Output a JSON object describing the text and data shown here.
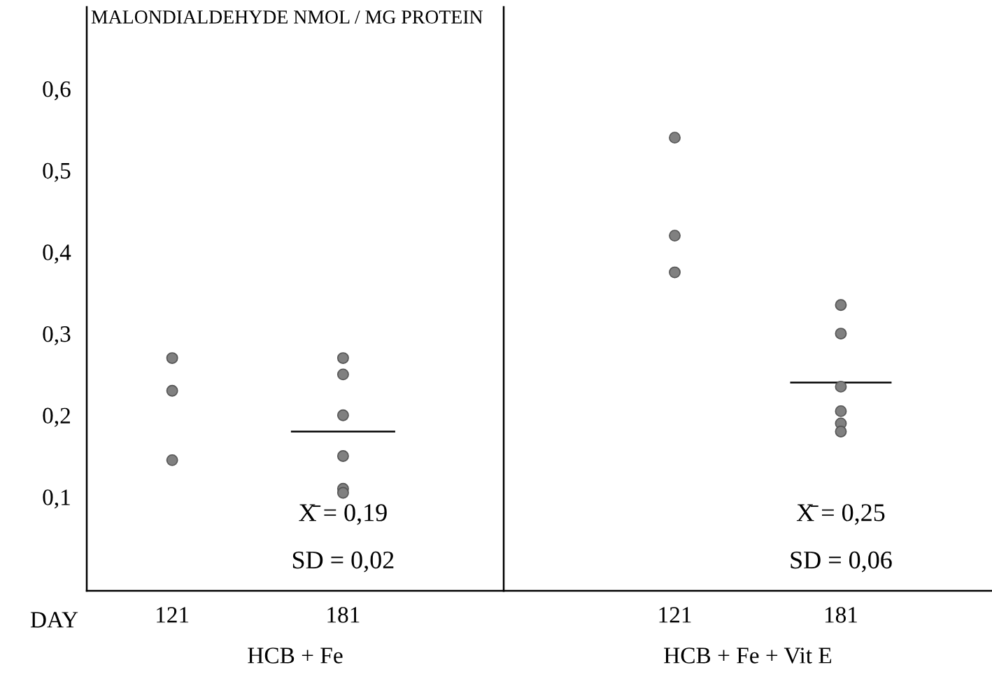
{
  "chart_data": [
    {
      "type": "scatter",
      "title": "MALONDIALDEHYDE NMOL / MG PROTEIN",
      "xlabel": "HCB + Fe",
      "categories": [
        "121",
        "181"
      ],
      "ylim": [
        -0.015,
        0.7
      ],
      "yticks": [
        {
          "value": 0.1,
          "label": "0,1"
        },
        {
          "value": 0.2,
          "label": "0,2"
        },
        {
          "value": 0.3,
          "label": "0,3"
        },
        {
          "value": 0.4,
          "label": "0,4"
        },
        {
          "value": 0.5,
          "label": "0,5"
        },
        {
          "value": 0.6,
          "label": "0,6"
        }
      ],
      "marker": "circle",
      "grid": false,
      "series": [
        {
          "color": "#808080",
          "x": [
            "121",
            "121",
            "121",
            "181",
            "181",
            "181",
            "181",
            "181",
            "181"
          ],
          "values": [
            0.27,
            0.23,
            0.145,
            0.27,
            0.25,
            0.2,
            0.15,
            0.11,
            0.105
          ]
        }
      ],
      "ref_lines": [
        {
          "axis": "y",
          "value": 0.18,
          "color": "#000000"
        }
      ],
      "annotations": [
        "DAY",
        "X̄ = 0,19",
        "SD = 0,02"
      ]
    },
    {
      "type": "scatter",
      "xlabel": "HCB + Fe + Vit E",
      "categories": [
        "121",
        "181"
      ],
      "ylim": [
        -0.015,
        0.7
      ],
      "tick_labels": "x",
      "marker": "circle",
      "grid": false,
      "series": [
        {
          "color": "#808080",
          "x": [
            "121",
            "121",
            "121",
            "181",
            "181",
            "181",
            "181",
            "181",
            "181"
          ],
          "values": [
            0.54,
            0.42,
            0.375,
            0.335,
            0.3,
            0.235,
            0.205,
            0.19,
            0.18
          ]
        }
      ],
      "ref_lines": [
        {
          "axis": "y",
          "value": 0.24,
          "color": "#000000"
        }
      ],
      "annotations": [
        "X̄ = 0,25",
        "SD = 0,06"
      ]
    }
  ]
}
